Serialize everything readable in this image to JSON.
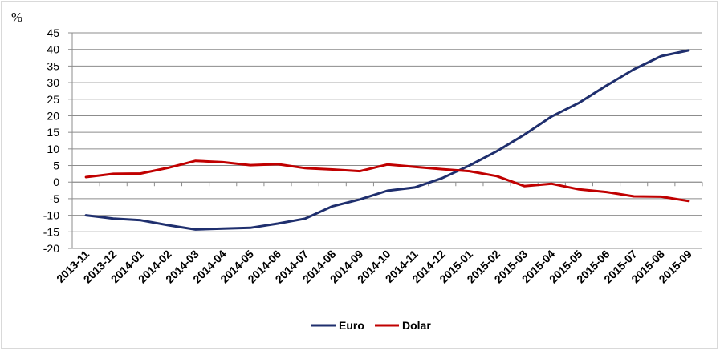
{
  "chart_data": {
    "type": "line",
    "unit_label": "%",
    "categories": [
      "2013-11",
      "2013-12",
      "2014-01",
      "2014-02",
      "2014-03",
      "2014-04",
      "2014-05",
      "2014-06",
      "2014-07",
      "2014-08",
      "2014-09",
      "2014-10",
      "2014-11",
      "2014-12",
      "2015-01",
      "2015-02",
      "2015-03",
      "2015-04",
      "2015-05",
      "2015-06",
      "2015-07",
      "2015-08",
      "2015-09"
    ],
    "ylim": [
      -20,
      45
    ],
    "yticks": [
      45,
      40,
      35,
      30,
      25,
      20,
      15,
      10,
      5,
      0,
      -5,
      -10,
      -15,
      -20
    ],
    "grid": true,
    "legend_position": "bottom",
    "series": [
      {
        "name": "Euro",
        "color": "#1f2f6e",
        "values": [
          -10,
          -11,
          -11.5,
          -13,
          -14.3,
          -14,
          -13.8,
          -12.5,
          -11,
          -7.3,
          -5.2,
          -2.6,
          -1.6,
          1.2,
          5,
          9.3,
          14.3,
          19.8,
          23.9,
          29.1,
          34,
          38,
          39.7
        ]
      },
      {
        "name": "Dolar",
        "color": "#c00000",
        "values": [
          1.5,
          2.5,
          2.6,
          4.3,
          6.4,
          6,
          5.1,
          5.4,
          4.2,
          3.8,
          3.3,
          5.3,
          4.6,
          3.9,
          3.3,
          1.8,
          -1.2,
          -0.5,
          -2.2,
          -3,
          -4.3,
          -4.4,
          -5.7
        ]
      }
    ]
  }
}
